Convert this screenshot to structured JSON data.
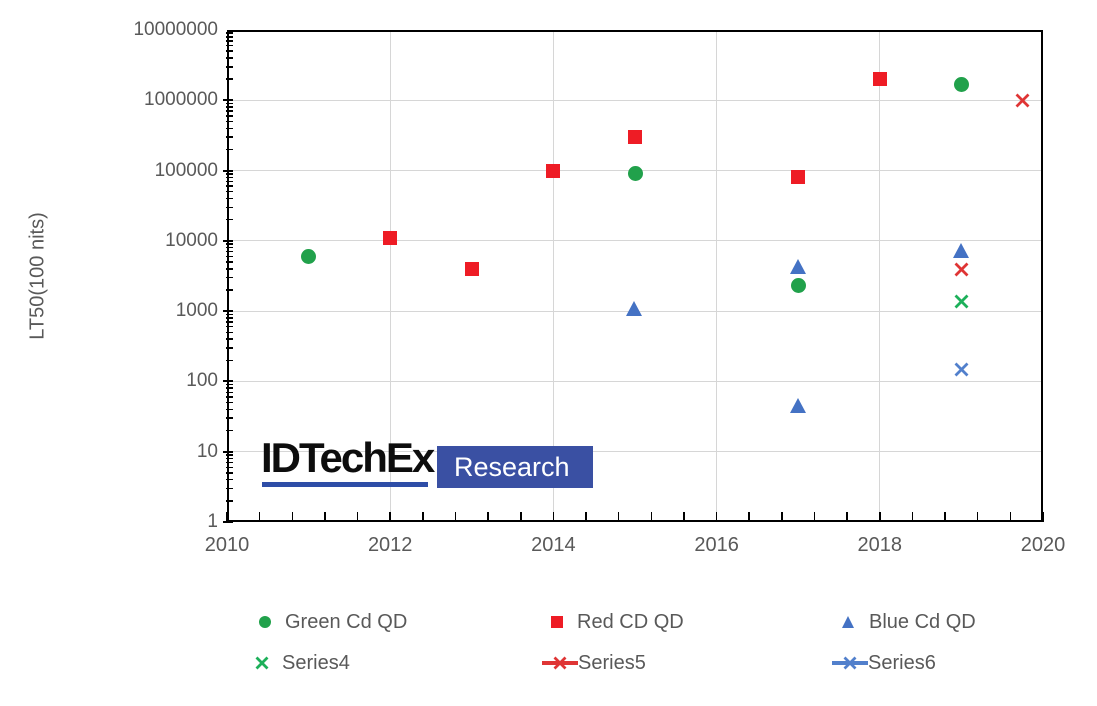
{
  "logo": {
    "brand": "IDTechEx",
    "research": "Research"
  },
  "colors": {
    "axis": "#000000",
    "grid": "#d6d6d6",
    "tick_text": "#595959",
    "logo_text": "#0d0d0d",
    "logo_underline": "#2e4da7",
    "logo_badge_bg": "#3a50a3",
    "logo_badge_text": "#ffffff"
  },
  "chart_data": {
    "type": "scatter",
    "title": "",
    "xlabel": "",
    "ylabel": "LT50(100 nits)",
    "x_scale": "linear",
    "y_scale": "log",
    "xlim": [
      2010,
      2020
    ],
    "ylim": [
      1,
      10000000
    ],
    "x_tick_labels": [
      "2010",
      "2012",
      "2014",
      "2016",
      "2018",
      "2020"
    ],
    "x_major_tick_years": [
      2010,
      2012,
      2014,
      2016,
      2018,
      2020
    ],
    "x_minor_tick_step": 0.4,
    "y_tick_labels": [
      "1",
      "10",
      "100",
      "1000",
      "10000",
      "100000",
      "1000000",
      "10000000"
    ],
    "grid": true,
    "legend_position": "bottom",
    "series": [
      {
        "name": "Green Cd QD",
        "marker": "circle",
        "color": "#21a14b",
        "points": [
          [
            2011,
            6000
          ],
          [
            2015,
            90000
          ],
          [
            2017,
            2300
          ],
          [
            2019,
            1700000
          ]
        ]
      },
      {
        "name": "Red CD QD",
        "marker": "square",
        "color": "#ee1c25",
        "points": [
          [
            2012,
            11000
          ],
          [
            2013,
            4000
          ],
          [
            2014,
            100000
          ],
          [
            2015,
            300000
          ],
          [
            2017,
            80000
          ],
          [
            2018,
            2000000
          ]
        ]
      },
      {
        "name": "Blue Cd QD",
        "marker": "triangle",
        "color": "#4472c4",
        "points": [
          [
            2015,
            1100
          ],
          [
            2017,
            4300
          ],
          [
            2017,
            46
          ],
          [
            2019,
            7200
          ]
        ]
      },
      {
        "name": "Series4",
        "marker": "x",
        "color": "#1db05a",
        "points": [
          [
            2019,
            1350
          ]
        ]
      },
      {
        "name": "Series5",
        "marker": "x-line",
        "color": "#df3535",
        "points": [
          [
            2019,
            3900
          ],
          [
            2019.75,
            1000000
          ]
        ]
      },
      {
        "name": "Series6",
        "marker": "x-line",
        "color": "#5280cc",
        "points": [
          [
            2019,
            150
          ]
        ]
      }
    ]
  }
}
